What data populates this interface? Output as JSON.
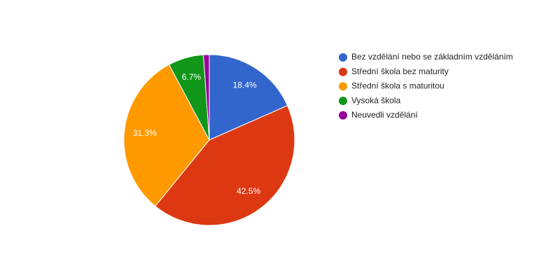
{
  "chart_data": {
    "type": "pie",
    "categories": [
      "Bez vzdělání nebo se základním vzděláním",
      "Střední škola bez maturity",
      "Střední škola s maturitou",
      "Vysoká škola",
      "Neuvedli vzdělání"
    ],
    "values": [
      18.4,
      42.5,
      31.3,
      6.7,
      1.1
    ],
    "value_labels": [
      "18.4%",
      "42.5%",
      "31.3%",
      "6.7%",
      null
    ],
    "colors": [
      "#3366cc",
      "#dc3912",
      "#ff9900",
      "#109618",
      "#990099"
    ],
    "legend": "right"
  }
}
